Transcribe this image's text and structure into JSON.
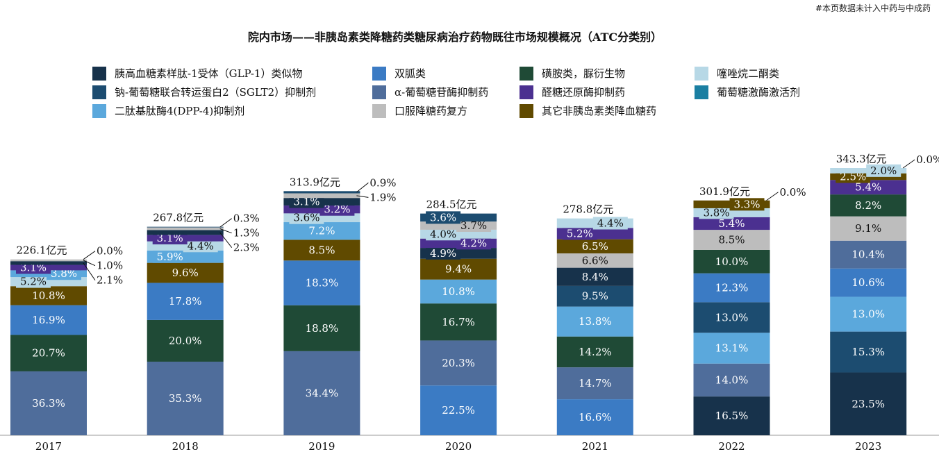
{
  "note": "#本页数据未计入中药与中成药",
  "chart_data": {
    "type": "bar",
    "stacked": true,
    "title": "院内市场——非胰岛素类降糖药类糖尿病治疗药物既往市场规模概况（ATC分类别）",
    "categories": [
      "2017",
      "2018",
      "2019",
      "2020",
      "2021",
      "2022",
      "2023"
    ],
    "totals": [
      226.1,
      267.8,
      313.9,
      284.5,
      278.8,
      301.9,
      343.3
    ],
    "total_unit": "亿元",
    "legend": [
      {
        "name": "胰高血糖素样肽-1受体（GLP-1）类似物",
        "color": "#17324b"
      },
      {
        "name": "双胍类",
        "color": "#3b7bc4"
      },
      {
        "name": "磺胺类，脲衍生物",
        "color": "#1f4a36"
      },
      {
        "name": "噻唑烷二酮类",
        "color": "#b7d8e6"
      },
      {
        "name": "钠-葡萄糖联合转运蛋白2（SGLT2）抑制剂",
        "color": "#1c4c70"
      },
      {
        "name": "α-葡萄糖苷酶抑制药",
        "color": "#4f6d9b"
      },
      {
        "name": "醛糖还原酶抑制药",
        "color": "#4b3090"
      },
      {
        "name": "葡萄糖激酶激活剂",
        "color": "#1a7fa2"
      },
      {
        "name": "二肽基肽酶4(DPP-4)抑制剂",
        "color": "#5ba8dc"
      },
      {
        "name": "口服降糖药复方",
        "color": "#bdbdbd"
      },
      {
        "name": "其它非胰岛素类降血糖药",
        "color": "#604a00"
      }
    ],
    "series_stacks": [
      [
        {
          "c": 5,
          "v": 36.3
        },
        {
          "c": 2,
          "v": 20.7
        },
        {
          "c": 1,
          "v": 16.9
        },
        {
          "c": 10,
          "v": 10.8
        },
        {
          "c": 3,
          "v": 5.2
        },
        {
          "c": 8,
          "v": 3.8
        },
        {
          "c": 6,
          "v": 3.1
        },
        {
          "c": 0,
          "v": 2.1
        },
        {
          "c": 9,
          "v": 1.0
        },
        {
          "c": 4,
          "v": 0.0
        }
      ],
      [
        {
          "c": 5,
          "v": 35.3
        },
        {
          "c": 2,
          "v": 20.0
        },
        {
          "c": 1,
          "v": 17.8
        },
        {
          "c": 10,
          "v": 9.6
        },
        {
          "c": 8,
          "v": 5.9
        },
        {
          "c": 3,
          "v": 4.4
        },
        {
          "c": 6,
          "v": 3.1
        },
        {
          "c": 0,
          "v": 2.3
        },
        {
          "c": 9,
          "v": 1.3
        },
        {
          "c": 4,
          "v": 0.3
        }
      ],
      [
        {
          "c": 5,
          "v": 34.4
        },
        {
          "c": 2,
          "v": 18.8
        },
        {
          "c": 1,
          "v": 18.3
        },
        {
          "c": 10,
          "v": 8.5
        },
        {
          "c": 8,
          "v": 7.2
        },
        {
          "c": 3,
          "v": 3.6
        },
        {
          "c": 6,
          "v": 3.2
        },
        {
          "c": 0,
          "v": 3.1
        },
        {
          "c": 9,
          "v": 1.9
        },
        {
          "c": 4,
          "v": 0.9
        }
      ],
      [
        {
          "c": 1,
          "v": 22.5
        },
        {
          "c": 5,
          "v": 20.3
        },
        {
          "c": 2,
          "v": 16.7
        },
        {
          "c": 8,
          "v": 10.8
        },
        {
          "c": 10,
          "v": 9.4
        },
        {
          "c": 0,
          "v": 4.9
        },
        {
          "c": 6,
          "v": 4.2
        },
        {
          "c": 3,
          "v": 4.0
        },
        {
          "c": 9,
          "v": 3.7
        },
        {
          "c": 4,
          "v": 3.6
        }
      ],
      [
        {
          "c": 1,
          "v": 16.6
        },
        {
          "c": 5,
          "v": 14.7
        },
        {
          "c": 2,
          "v": 14.2
        },
        {
          "c": 8,
          "v": 13.8
        },
        {
          "c": 4,
          "v": 9.5
        },
        {
          "c": 0,
          "v": 8.4
        },
        {
          "c": 9,
          "v": 6.6
        },
        {
          "c": 10,
          "v": 6.5
        },
        {
          "c": 6,
          "v": 5.2
        },
        {
          "c": 3,
          "v": 4.4
        }
      ],
      [
        {
          "c": 0,
          "v": 16.5
        },
        {
          "c": 5,
          "v": 14.0
        },
        {
          "c": 8,
          "v": 13.1
        },
        {
          "c": 4,
          "v": 13.0
        },
        {
          "c": 1,
          "v": 12.3
        },
        {
          "c": 2,
          "v": 10.0
        },
        {
          "c": 9,
          "v": 8.5
        },
        {
          "c": 6,
          "v": 5.4
        },
        {
          "c": 3,
          "v": 3.8
        },
        {
          "c": 10,
          "v": 3.3
        },
        {
          "c": 7,
          "v": 0.0
        }
      ],
      [
        {
          "c": 0,
          "v": 23.5
        },
        {
          "c": 4,
          "v": 15.3
        },
        {
          "c": 8,
          "v": 13.0
        },
        {
          "c": 1,
          "v": 10.6
        },
        {
          "c": 5,
          "v": 10.4
        },
        {
          "c": 9,
          "v": 9.1
        },
        {
          "c": 2,
          "v": 8.2
        },
        {
          "c": 6,
          "v": 5.4
        },
        {
          "c": 10,
          "v": 2.5
        },
        {
          "c": 3,
          "v": 2.0
        },
        {
          "c": 7,
          "v": 0.0
        }
      ]
    ],
    "value_unit": "%"
  }
}
